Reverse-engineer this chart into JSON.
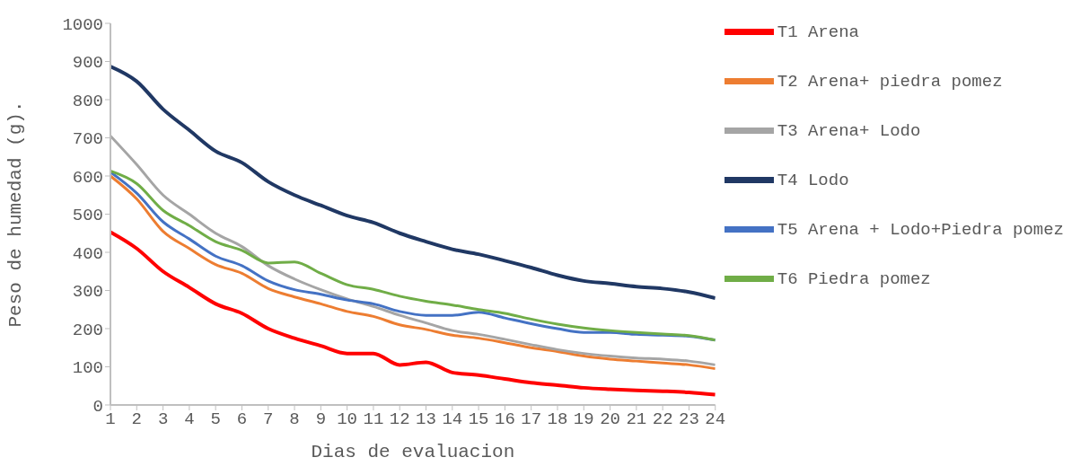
{
  "chart_data": {
    "type": "line",
    "xlabel": "Dias de evaluacion",
    "ylabel": "Peso de humedad (g).",
    "x": [
      1,
      2,
      3,
      4,
      5,
      6,
      7,
      8,
      9,
      10,
      11,
      12,
      13,
      14,
      15,
      16,
      17,
      18,
      19,
      20,
      21,
      22,
      23,
      24
    ],
    "xlim": [
      1,
      24
    ],
    "xticks": [
      1,
      2,
      3,
      4,
      5,
      6,
      7,
      8,
      9,
      10,
      11,
      12,
      13,
      14,
      15,
      16,
      17,
      18,
      19,
      20,
      21,
      22,
      23,
      24
    ],
    "ylim": [
      0,
      1000
    ],
    "yticks": [
      0,
      100,
      200,
      300,
      400,
      500,
      600,
      700,
      800,
      900,
      1000
    ],
    "grid": false,
    "legend": "top right",
    "marker": "none",
    "line_style": "solid",
    "series": [
      {
        "name": "T1 Arena",
        "color": "#ff0000",
        "values": [
          453,
          410,
          350,
          308,
          265,
          240,
          200,
          175,
          155,
          135,
          135,
          105,
          112,
          85,
          78,
          68,
          58,
          52,
          45,
          41,
          38,
          36,
          33,
          27
        ]
      },
      {
        "name": "T2 Arena+ piedra pomez",
        "color": "#ed7d31",
        "values": [
          600,
          540,
          455,
          410,
          368,
          345,
          305,
          283,
          265,
          245,
          232,
          210,
          198,
          183,
          175,
          163,
          150,
          140,
          128,
          120,
          115,
          110,
          105,
          95
        ]
      },
      {
        "name": "T3 Arena+ Lodo",
        "color": "#a5a5a5",
        "values": [
          705,
          630,
          550,
          500,
          450,
          415,
          365,
          330,
          302,
          278,
          258,
          235,
          215,
          195,
          185,
          172,
          158,
          145,
          135,
          128,
          123,
          120,
          115,
          105
        ]
      },
      {
        "name": "T4 Lodo",
        "color": "#203864",
        "values": [
          887,
          848,
          775,
          720,
          665,
          635,
          585,
          550,
          523,
          496,
          478,
          450,
          428,
          408,
          395,
          378,
          360,
          340,
          325,
          318,
          310,
          305,
          296,
          280
        ]
      },
      {
        "name": "T5 Arena + Lodo+Piedra pomez",
        "color": "#4472c4",
        "values": [
          610,
          555,
          480,
          435,
          390,
          365,
          325,
          302,
          290,
          275,
          265,
          245,
          235,
          235,
          243,
          228,
          213,
          200,
          190,
          190,
          185,
          183,
          180,
          170
        ]
      },
      {
        "name": "T6 Piedra pomez",
        "color": "#70ad47",
        "values": [
          613,
          580,
          510,
          470,
          428,
          405,
          372,
          375,
          345,
          315,
          303,
          285,
          272,
          262,
          250,
          240,
          225,
          212,
          202,
          195,
          190,
          186,
          182,
          170
        ]
      }
    ]
  }
}
